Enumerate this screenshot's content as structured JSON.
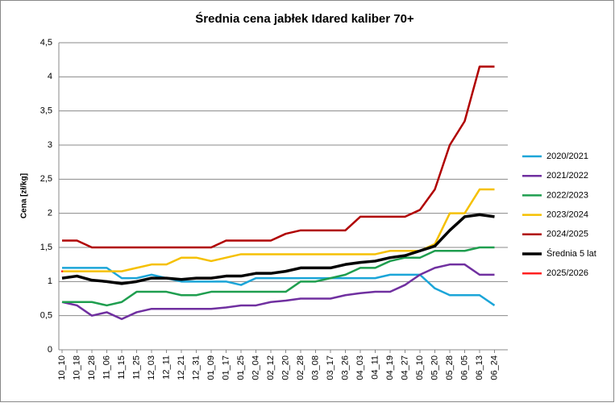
{
  "chart_data": {
    "type": "line",
    "title": "Średnia cena jabłek Idared kaliber 70+",
    "y_label": "Cena [zł/kg]",
    "categories": [
      "10_10",
      "10_18",
      "10_28",
      "11_06",
      "11_15",
      "11_25",
      "12_03",
      "12_11",
      "12_21",
      "12_31",
      "01_09",
      "01_17",
      "01_25",
      "02_04",
      "02_12",
      "02_20",
      "02_28",
      "03_08",
      "03_17",
      "03_26",
      "04_03",
      "04_11",
      "04_19",
      "04_27",
      "05_10",
      "05_20",
      "05_28",
      "06_05",
      "06_13",
      "06_24"
    ],
    "series": [
      {
        "name": "2020/2021",
        "color": "#1ba5d8",
        "values": [
          1.2,
          1.2,
          1.2,
          1.2,
          1.05,
          1.05,
          1.1,
          1.05,
          1.0,
          1.0,
          1.0,
          1.0,
          0.95,
          1.05,
          1.05,
          1.05,
          1.05,
          1.05,
          1.05,
          1.05,
          1.05,
          1.05,
          1.1,
          1.1,
          1.1,
          0.9,
          0.8,
          0.8,
          0.8,
          0.65
        ]
      },
      {
        "name": "2021/2022",
        "color": "#7030a0",
        "values": [
          0.7,
          0.65,
          0.5,
          0.55,
          0.45,
          0.55,
          0.6,
          0.6,
          0.6,
          0.6,
          0.6,
          0.62,
          0.65,
          0.65,
          0.7,
          0.72,
          0.75,
          0.75,
          0.75,
          0.8,
          0.83,
          0.85,
          0.85,
          0.95,
          1.1,
          1.2,
          1.25,
          1.25,
          1.1,
          1.1
        ]
      },
      {
        "name": "2022/2023",
        "color": "#1f9e4f",
        "values": [
          0.7,
          0.7,
          0.7,
          0.65,
          0.7,
          0.85,
          0.85,
          0.85,
          0.8,
          0.8,
          0.85,
          0.85,
          0.85,
          0.85,
          0.85,
          0.85,
          1.0,
          1.0,
          1.05,
          1.1,
          1.2,
          1.2,
          1.3,
          1.35,
          1.35,
          1.45,
          1.45,
          1.45,
          1.5,
          1.5
        ]
      },
      {
        "name": "2023/2024",
        "color": "#f5c000",
        "values": [
          1.15,
          1.15,
          1.15,
          1.15,
          1.15,
          1.2,
          1.25,
          1.25,
          1.35,
          1.35,
          1.3,
          1.35,
          1.4,
          1.4,
          1.4,
          1.4,
          1.4,
          1.4,
          1.4,
          1.4,
          1.4,
          1.4,
          1.45,
          1.45,
          1.45,
          1.55,
          2.0,
          2.0,
          2.35,
          2.35
        ]
      },
      {
        "name": "2024/2025",
        "color": "#b00000",
        "values": [
          1.6,
          1.6,
          1.5,
          1.5,
          1.5,
          1.5,
          1.5,
          1.5,
          1.5,
          1.5,
          1.5,
          1.6,
          1.6,
          1.6,
          1.6,
          1.7,
          1.75,
          1.75,
          1.75,
          1.75,
          1.95,
          1.95,
          1.95,
          1.95,
          2.05,
          2.35,
          3.0,
          3.35,
          4.15,
          4.15
        ]
      },
      {
        "name": "Średnia 5 lat",
        "color": "#000000",
        "values": [
          1.05,
          1.08,
          1.02,
          1.0,
          0.97,
          1.0,
          1.05,
          1.05,
          1.03,
          1.05,
          1.05,
          1.08,
          1.08,
          1.12,
          1.12,
          1.15,
          1.2,
          1.2,
          1.2,
          1.25,
          1.28,
          1.3,
          1.35,
          1.38,
          1.45,
          1.52,
          1.75,
          1.95,
          1.98,
          1.95
        ]
      },
      {
        "name": "2025/2026",
        "color": "#ff2020",
        "values": [
          1.15,
          null,
          null,
          null,
          null,
          null,
          null,
          null,
          null,
          null,
          null,
          null,
          null,
          null,
          null,
          null,
          null,
          null,
          null,
          null,
          null,
          null,
          null,
          null,
          null,
          null,
          null,
          null,
          null,
          null
        ]
      }
    ],
    "ylim": [
      0,
      4.5
    ],
    "yticks": [
      0,
      {
        "value": 0.5,
        "label": "0,5"
      },
      1,
      {
        "value": 1.5,
        "label": "1,5"
      },
      2,
      {
        "value": 2.5,
        "label": "2,5"
      },
      3,
      {
        "value": 3.5,
        "label": "3,5"
      },
      4,
      {
        "value": 4.5,
        "label": "4,5"
      }
    ],
    "grid": true,
    "legend": "right"
  }
}
